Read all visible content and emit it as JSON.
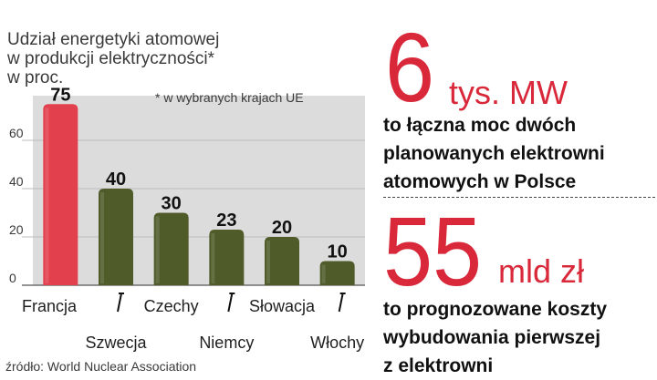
{
  "chart_data": {
    "type": "bar",
    "title_lines": [
      "Udział energetyki atomowej",
      "w produkcji elektryczności*",
      "w proc."
    ],
    "note": "* w wybranych krajach UE",
    "source": "źródło: World Nuclear Association",
    "categories": [
      "Francja",
      "Szwecja",
      "Czechy",
      "Niemcy",
      "Słowacja",
      "Włochy"
    ],
    "values": [
      75,
      40,
      30,
      23,
      20,
      10
    ],
    "value_labels": [
      "75",
      "40",
      "30",
      "23",
      "20",
      "10"
    ],
    "highlight_category": "Francja",
    "yticks": [
      0,
      20,
      40,
      60
    ],
    "ylim": [
      0,
      75
    ],
    "grid": true,
    "colors": {
      "highlight": "#e3404e",
      "bar": "#4f5c2a",
      "plot_bg": "#dcdcdc",
      "grid": "#bdbdbd"
    }
  },
  "stats": [
    {
      "number": "6",
      "unit": "tys. MW",
      "lines": [
        "to łączna moc dwóch",
        "planowanych elektrowni",
        "atomowych w Polsce"
      ]
    },
    {
      "number": "55",
      "unit": "mld zł",
      "lines": [
        "to prognozowane koszty",
        "wybudowania pierwszej",
        "z elektrowni"
      ]
    }
  ]
}
